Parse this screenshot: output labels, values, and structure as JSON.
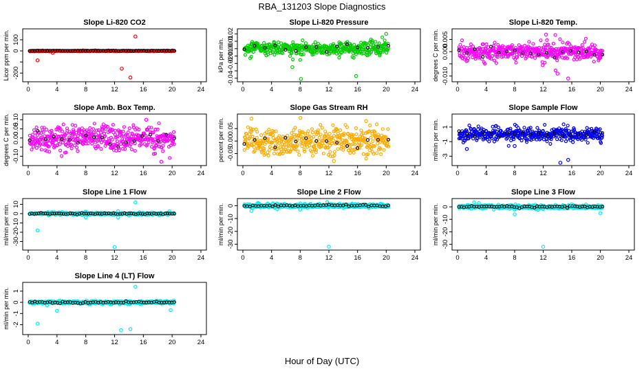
{
  "figure": {
    "title": "RBA_131203  Slope Diagnostics",
    "xlabel": "Hour of Day (UTC)"
  },
  "chart_data": [
    {
      "type": "scatter",
      "title": "Slope Li-820 CO2",
      "ylabel": "Licor ppm per min.",
      "xlim": [
        0,
        24
      ],
      "ylim": [
        -260,
        180
      ],
      "xticks": [
        0,
        4,
        8,
        12,
        16,
        20,
        24
      ],
      "yticks": [
        -200,
        -100,
        0,
        100
      ],
      "ytick_labels": [
        "-200",
        "",
        "0",
        "100"
      ],
      "primary_color": "#ff0000",
      "spread": 2,
      "outlier_mag": 3,
      "black_fraction": 0.45,
      "outliers": [
        [
          1.3,
          -85
        ],
        [
          3.4,
          -18
        ],
        [
          13.0,
          -160
        ],
        [
          14.2,
          -240
        ],
        [
          14.9,
          130
        ]
      ]
    },
    {
      "type": "scatter",
      "title": "Slope Li-820 Pressure",
      "ylabel": "kPa per min.",
      "xlim": [
        0,
        24
      ],
      "ylim": [
        -0.042,
        0.024
      ],
      "xticks": [
        0,
        4,
        8,
        12,
        16,
        20,
        24
      ],
      "yticks": [
        -0.04,
        -0.03,
        -0.02,
        -0.01,
        0.0,
        0.01,
        0.02
      ],
      "ytick_labels": [
        "-0.04",
        "",
        "-0.02",
        "-0.01",
        "0.00",
        "0.01",
        "0.02"
      ],
      "primary_color": "#00cc00",
      "spread": 0.0045,
      "outlier_mag": 0.01,
      "black_fraction": 0.12,
      "outliers": [
        [
          6.9,
          -0.025
        ],
        [
          8.1,
          -0.041
        ],
        [
          15.8,
          -0.037
        ],
        [
          20.0,
          0.02
        ]
      ]
    },
    {
      "type": "scatter",
      "title": "Slope Li-820 Temp.",
      "ylabel": "degrees C per min.",
      "xlim": [
        0,
        24
      ],
      "ylim": [
        -0.0115,
        0.0085
      ],
      "xticks": [
        0,
        4,
        8,
        12,
        16,
        20,
        24
      ],
      "yticks": [
        -0.01,
        -0.005,
        0.0,
        0.005
      ],
      "ytick_labels": [
        "-0.010",
        "",
        "0.000",
        "0.005"
      ],
      "primary_color": "#ff00ff",
      "spread": 0.0018,
      "outlier_mag": 0.004,
      "black_fraction": 0.15,
      "outliers": [
        [
          12.4,
          0.007
        ],
        [
          15.5,
          -0.011
        ],
        [
          14.0,
          -0.009
        ]
      ]
    },
    {
      "type": "scatter",
      "title": "Slope Amb. Box Temp.",
      "ylabel": "degrees C per min.",
      "xlim": [
        0,
        24
      ],
      "ylim": [
        -0.14,
        0.12
      ],
      "xticks": [
        0,
        4,
        8,
        12,
        16,
        20,
        24
      ],
      "yticks": [
        -0.1,
        -0.05,
        0.0,
        0.05,
        0.1
      ],
      "ytick_labels": [
        "-0.10",
        "",
        "0.00",
        "0.05",
        "0.10"
      ],
      "primary_color": "#ff00ff",
      "spread": 0.035,
      "outlier_mag": 0.06,
      "black_fraction": 0.15,
      "outliers": [
        [
          18.5,
          -0.13
        ],
        [
          16.4,
          0.1
        ]
      ]
    },
    {
      "type": "scatter",
      "title": "Slope Gas Stream RH",
      "ylabel": "percent per min.",
      "xlim": [
        0,
        24
      ],
      "ylim": [
        -0.09,
        0.1
      ],
      "xticks": [
        0,
        4,
        8,
        12,
        16,
        20,
        24
      ],
      "yticks": [
        -0.05,
        0.0,
        0.05
      ],
      "ytick_labels": [
        "-0.05",
        "0.00",
        "0.05"
      ],
      "primary_color": "#ffaa00",
      "spread": 0.03,
      "outlier_mag": 0.04,
      "black_fraction": 0.12,
      "outliers": [
        [
          1.2,
          0.09
        ],
        [
          12.7,
          -0.08
        ],
        [
          17.2,
          0.08
        ]
      ]
    },
    {
      "type": "scatter",
      "title": "Slope Sample Flow",
      "ylabel": "ml/min per min.",
      "xlim": [
        0,
        24
      ],
      "ylim": [
        -4.0,
        2.5
      ],
      "xticks": [
        0,
        4,
        8,
        12,
        16,
        20,
        24
      ],
      "yticks": [
        -3,
        -1,
        1
      ],
      "ytick_labels": [
        "-3",
        "-1",
        "1"
      ],
      "primary_color": "#0000ee",
      "spread": 0.45,
      "outlier_mag": 1.2,
      "black_fraction": 0.15,
      "outliers": [
        [
          1.3,
          -2.0
        ],
        [
          15.5,
          -3.5
        ],
        [
          14.4,
          -3.9
        ],
        [
          8.0,
          -1.6
        ]
      ]
    },
    {
      "type": "scatter",
      "title": "Slope Line 1 Flow",
      "ylabel": "ml/min per min.",
      "xlim": [
        0,
        24
      ],
      "ylim": [
        -37,
        14
      ],
      "xticks": [
        0,
        4,
        8,
        12,
        16,
        20,
        24
      ],
      "yticks": [
        -30,
        -20,
        -10,
        0,
        10
      ],
      "ytick_labels": [
        "-30",
        "-20",
        "-10",
        "0",
        "10"
      ],
      "primary_color": "#00eeee",
      "spread": 0.6,
      "outlier_mag": 3,
      "black_fraction": 0.5,
      "outliers": [
        [
          1.3,
          -18
        ],
        [
          12.0,
          -36
        ],
        [
          14.9,
          12
        ],
        [
          8.0,
          -4
        ],
        [
          12.5,
          -4
        ]
      ]
    },
    {
      "type": "scatter",
      "title": "Slope Line 2 Flow",
      "ylabel": "ml/min per min.",
      "xlim": [
        0,
        24
      ],
      "ylim": [
        -33,
        4
      ],
      "xticks": [
        0,
        4,
        8,
        12,
        16,
        20,
        24
      ],
      "yticks": [
        -30,
        -20,
        -10,
        0
      ],
      "ytick_labels": [
        "-30",
        "-20",
        "-10",
        "0"
      ],
      "primary_color": "#00eeee",
      "spread": 0.7,
      "outlier_mag": 2.5,
      "black_fraction": 0.4,
      "outliers": [
        [
          12.0,
          -32
        ],
        [
          1.2,
          -4
        ],
        [
          8.0,
          -3
        ]
      ]
    },
    {
      "type": "scatter",
      "title": "Slope Line 3 Flow",
      "ylabel": "ml/min per min.",
      "xlim": [
        0,
        24
      ],
      "ylim": [
        -33,
        5
      ],
      "xticks": [
        0,
        4,
        8,
        12,
        16,
        20,
        24
      ],
      "yticks": [
        -30,
        -20,
        -10,
        0
      ],
      "ytick_labels": [
        "-30",
        "-20",
        "-10",
        "0"
      ],
      "primary_color": "#00eeee",
      "spread": 0.8,
      "outlier_mag": 3,
      "black_fraction": 0.45,
      "outliers": [
        [
          12.0,
          -32
        ],
        [
          3.0,
          3
        ],
        [
          8.0,
          -6
        ],
        [
          16.0,
          2
        ],
        [
          20.0,
          -5
        ]
      ]
    },
    {
      "type": "scatter",
      "title": "Slope Line 4 (LT) Flow",
      "ylabel": "ml/min per min.",
      "xlim": [
        0,
        24
      ],
      "ylim": [
        -2.7,
        1.6
      ],
      "xticks": [
        0,
        4,
        8,
        12,
        16,
        20,
        24
      ],
      "yticks": [
        -2,
        -1,
        0,
        1
      ],
      "ytick_labels": [
        "-2",
        "-1",
        "0",
        "1"
      ],
      "primary_color": "#00eeee",
      "spread": 0.07,
      "outlier_mag": 0.35,
      "black_fraction": 0.45,
      "outliers": [
        [
          1.3,
          -1.9
        ],
        [
          4.0,
          -0.75
        ],
        [
          12.9,
          -2.5
        ],
        [
          14.2,
          -2.4
        ],
        [
          14.9,
          1.4
        ],
        [
          19.8,
          -0.7
        ]
      ]
    }
  ]
}
